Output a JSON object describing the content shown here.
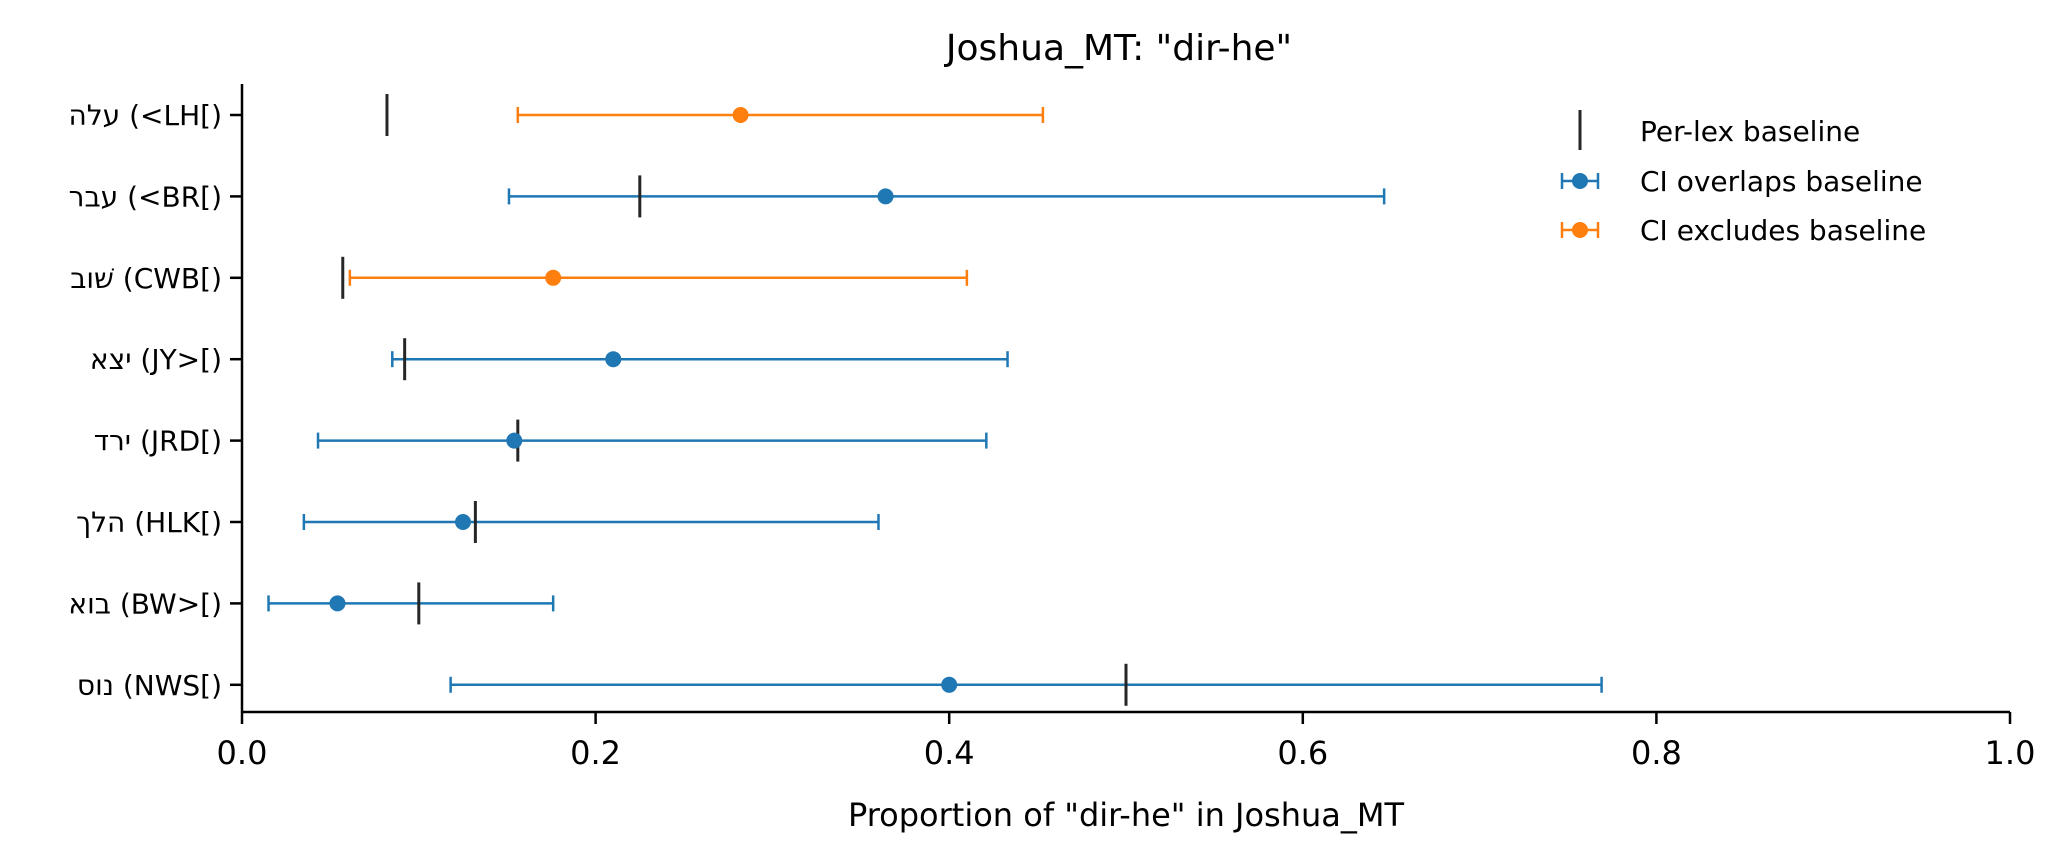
{
  "chart_data": {
    "type": "errorbar",
    "title": "Joshua_MT: \"dir-he\"",
    "xlabel": "Proportion of \"dir-he\" in Joshua_MT",
    "ylabel": "",
    "xlim": [
      0.0,
      1.0
    ],
    "xticks": [
      "0.0",
      "0.2",
      "0.4",
      "0.6",
      "0.8",
      "1.0"
    ],
    "grid": false,
    "legend_position": "top-right",
    "legend": {
      "baseline": "Per-lex baseline",
      "overlaps": "CI overlaps baseline",
      "excludes": "CI excludes baseline"
    },
    "colors": {
      "overlaps": "#1f77b4",
      "excludes": "#ff7f0e",
      "baseline": "#262626"
    },
    "categories": [
      "עלה (<LH[)",
      "עבר (<BR[)",
      "שׁוב (CWB[)",
      "יצא (JY>[)",
      "ירד (JRD[)",
      "הלך (HLK[)",
      "בוא (BW>[)",
      "נוס (NWS[)"
    ],
    "series": [
      {
        "category": "עלה (<LH[)",
        "estimate": 0.282,
        "ci_low": 0.156,
        "ci_high": 0.453,
        "baseline": 0.082,
        "status": "excludes"
      },
      {
        "category": "עבר (<BR[)",
        "estimate": 0.364,
        "ci_low": 0.151,
        "ci_high": 0.646,
        "baseline": 0.225,
        "status": "overlaps"
      },
      {
        "category": "שׁוב (CWB[)",
        "estimate": 0.176,
        "ci_low": 0.061,
        "ci_high": 0.41,
        "baseline": 0.057,
        "status": "excludes"
      },
      {
        "category": "יצא (JY>[)",
        "estimate": 0.21,
        "ci_low": 0.085,
        "ci_high": 0.433,
        "baseline": 0.092,
        "status": "overlaps"
      },
      {
        "category": "ירד (JRD[)",
        "estimate": 0.154,
        "ci_low": 0.043,
        "ci_high": 0.421,
        "baseline": 0.156,
        "status": "overlaps"
      },
      {
        "category": "הלך (HLK[)",
        "estimate": 0.125,
        "ci_low": 0.035,
        "ci_high": 0.36,
        "baseline": 0.132,
        "status": "overlaps"
      },
      {
        "category": "בוא (BW>[)",
        "estimate": 0.054,
        "ci_low": 0.015,
        "ci_high": 0.176,
        "baseline": 0.1,
        "status": "overlaps"
      },
      {
        "category": "נוס (NWS[)",
        "estimate": 0.4,
        "ci_low": 0.118,
        "ci_high": 0.769,
        "baseline": 0.5,
        "status": "overlaps"
      }
    ]
  }
}
